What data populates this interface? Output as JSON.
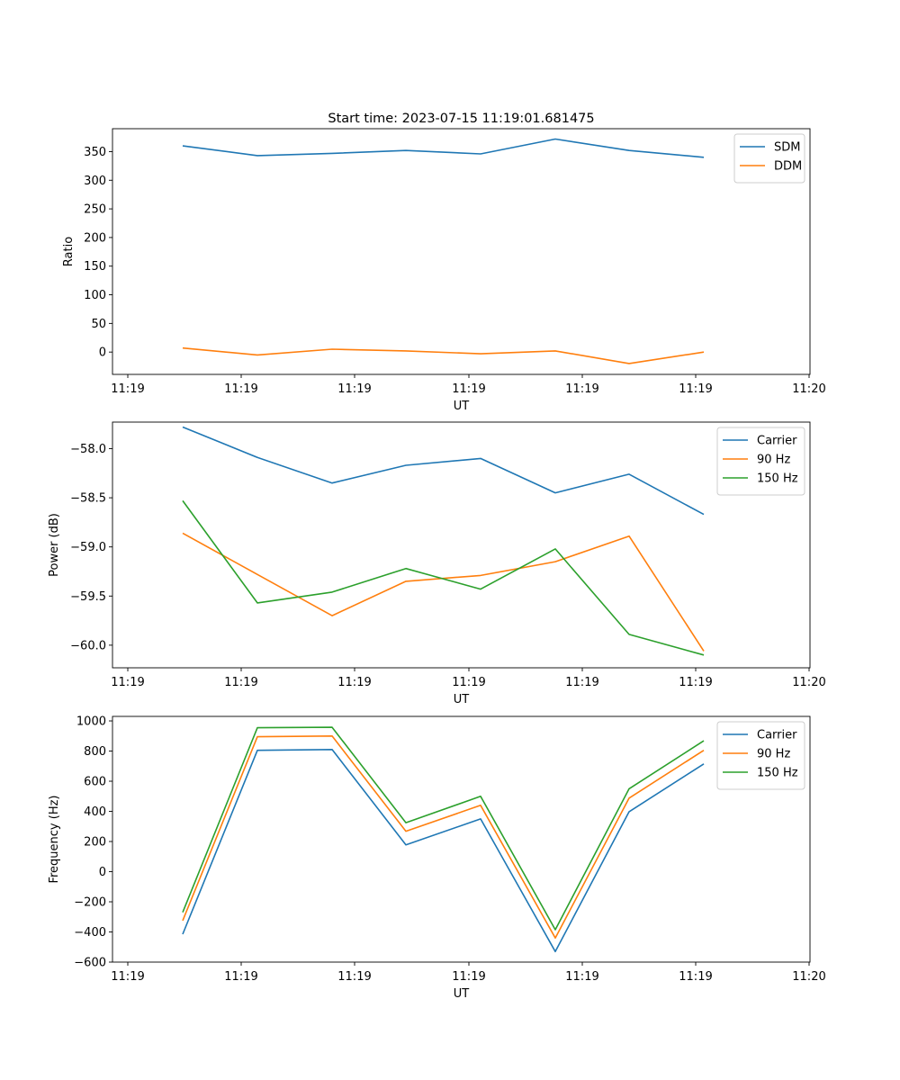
{
  "title": "Start time: 2023-07-15 11:19:01.681475",
  "colors": {
    "blue": "#1f77b4",
    "orange": "#ff7f0e",
    "green": "#2ca02c"
  },
  "chart_data": [
    {
      "type": "line",
      "xlabel": "UT",
      "ylabel": "Ratio",
      "x_tick_labels": [
        "11:19",
        "11:19",
        "11:19",
        "11:19",
        "11:19",
        "11:19",
        "11:20"
      ],
      "y_ticks": [
        0,
        50,
        100,
        150,
        200,
        250,
        300,
        350
      ],
      "y_tick_labels": [
        "0",
        "50",
        "100",
        "150",
        "200",
        "250",
        "300",
        "350"
      ],
      "ylim": [
        -39,
        390
      ],
      "legend_position": "top-right",
      "series": [
        {
          "name": "SDM",
          "color": "#1f77b4",
          "values": [
            360,
            343,
            347,
            352,
            346,
            372,
            352,
            340
          ]
        },
        {
          "name": "DDM",
          "color": "#ff7f0e",
          "values": [
            7,
            -5,
            5,
            2,
            -3,
            2,
            -20,
            0
          ]
        }
      ]
    },
    {
      "type": "line",
      "xlabel": "UT",
      "ylabel": "Power (dB)",
      "x_tick_labels": [
        "11:19",
        "11:19",
        "11:19",
        "11:19",
        "11:19",
        "11:19",
        "11:20"
      ],
      "y_ticks": [
        -60.0,
        -59.5,
        -59.0,
        -58.5,
        -58.0
      ],
      "y_tick_labels": [
        "−60.0",
        "−59.5",
        "−59.0",
        "−58.5",
        "−58.0"
      ],
      "ylim": [
        -60.23,
        -57.73
      ],
      "legend_position": "top-right",
      "series": [
        {
          "name": "Carrier",
          "color": "#1f77b4",
          "values": [
            -57.78,
            -58.09,
            -58.35,
            -58.17,
            -58.1,
            -58.45,
            -58.26,
            -58.67
          ]
        },
        {
          "name": "90 Hz",
          "color": "#ff7f0e",
          "values": [
            -58.86,
            -59.28,
            -59.7,
            -59.35,
            -59.29,
            -59.15,
            -58.89,
            -60.06
          ]
        },
        {
          "name": "150 Hz",
          "color": "#2ca02c",
          "values": [
            -58.53,
            -59.57,
            -59.46,
            -59.22,
            -59.43,
            -59.02,
            -59.89,
            -60.1
          ]
        }
      ]
    },
    {
      "type": "line",
      "xlabel": "UT",
      "ylabel": "Frequency (Hz)",
      "x_tick_labels": [
        "11:19",
        "11:19",
        "11:19",
        "11:19",
        "11:19",
        "11:19",
        "11:20"
      ],
      "y_ticks": [
        -600,
        -400,
        -200,
        0,
        200,
        400,
        600,
        800,
        1000
      ],
      "y_tick_labels": [
        "−600",
        "−400",
        "−200",
        "0",
        "200",
        "400",
        "600",
        "800",
        "1000"
      ],
      "ylim": [
        -600,
        1030
      ],
      "legend_position": "top-right",
      "series": [
        {
          "name": "Carrier",
          "color": "#1f77b4",
          "values": [
            -415,
            805,
            810,
            178,
            350,
            -530,
            398,
            715
          ]
        },
        {
          "name": "90 Hz",
          "color": "#ff7f0e",
          "values": [
            -325,
            895,
            900,
            268,
            440,
            -440,
            488,
            805
          ]
        },
        {
          "name": "150 Hz",
          "color": "#2ca02c",
          "values": [
            -270,
            955,
            958,
            325,
            500,
            -385,
            550,
            868
          ]
        }
      ]
    }
  ]
}
